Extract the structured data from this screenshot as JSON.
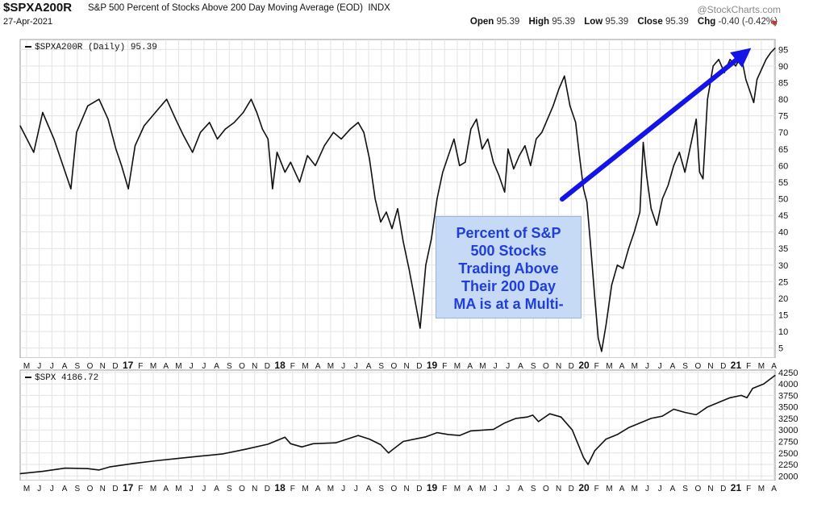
{
  "header": {
    "symbol": "$SPXA200R",
    "description": "S&P 500 Percent of Stocks Above 200 Day Moving Average (EOD)",
    "exchange": "INDX",
    "date": "27-Apr-2021",
    "brand": "@StockCharts.com",
    "ohlc": {
      "open_label": "Open",
      "open": "95.39",
      "high_label": "High",
      "high": "95.39",
      "low_label": "Low",
      "low": "95.39",
      "close_label": "Close",
      "close": "95.39",
      "chg_label": "Chg",
      "chg": "-0.40 (-0.42%)"
    }
  },
  "annotation": {
    "text": "Percent of S&P\n500 Stocks\nTrading Above\nTheir 200 Day\nMA is at a Multi-"
  },
  "colors": {
    "line": "#111111",
    "grid": "#e3e3e3",
    "arrow": "#1414e6",
    "note_bg": "#c6d9f5",
    "note_text": "#1f3fd8",
    "down": "#c0392b"
  },
  "chart_data": [
    {
      "type": "line",
      "legend": "$SPXA200R (Daily) 95.39",
      "ylim": [
        2,
        98
      ],
      "yticks": [
        5,
        10,
        15,
        20,
        25,
        30,
        35,
        40,
        45,
        50,
        55,
        60,
        65,
        70,
        75,
        80,
        85,
        90,
        95
      ],
      "x_ticks": [
        "M",
        "J",
        "J",
        "A",
        "S",
        "O",
        "N",
        "D",
        "17",
        "F",
        "M",
        "A",
        "M",
        "J",
        "J",
        "A",
        "S",
        "O",
        "N",
        "D",
        "18",
        "F",
        "M",
        "A",
        "M",
        "J",
        "J",
        "A",
        "S",
        "O",
        "N",
        "D",
        "19",
        "F",
        "M",
        "A",
        "M",
        "J",
        "J",
        "A",
        "S",
        "O",
        "N",
        "D",
        "20",
        "F",
        "M",
        "A",
        "M",
        "J",
        "J",
        "A",
        "S",
        "O",
        "N",
        "D",
        "21",
        "F",
        "M",
        "A"
      ],
      "x_tick_bold": [
        "17",
        "18",
        "19",
        "20",
        "21"
      ],
      "series": [
        {
          "values": [
            [
              0,
              72
            ],
            [
              1.2,
              64
            ],
            [
              2,
              76
            ],
            [
              3,
              68
            ],
            [
              4,
              58
            ],
            [
              4.5,
              53
            ],
            [
              5,
              70
            ],
            [
              6,
              78
            ],
            [
              7,
              80
            ],
            [
              7.8,
              74
            ],
            [
              8.5,
              65
            ],
            [
              9,
              60
            ],
            [
              9.6,
              53
            ],
            [
              10.2,
              66
            ],
            [
              11,
              72
            ],
            [
              12,
              76
            ],
            [
              13,
              80
            ],
            [
              13.8,
              74
            ],
            [
              14.5,
              69
            ],
            [
              15.3,
              64
            ],
            [
              16,
              70
            ],
            [
              16.8,
              73
            ],
            [
              17.5,
              68
            ],
            [
              18.2,
              71
            ],
            [
              19,
              73
            ],
            [
              19.8,
              76
            ],
            [
              20.5,
              80
            ],
            [
              21,
              76
            ],
            [
              21.5,
              71
            ],
            [
              22,
              68
            ],
            [
              22.4,
              53
            ],
            [
              22.8,
              64
            ],
            [
              23.5,
              58
            ],
            [
              24,
              61
            ],
            [
              24.8,
              55
            ],
            [
              25.5,
              63
            ],
            [
              26.2,
              60
            ],
            [
              27,
              66
            ],
            [
              27.8,
              70
            ],
            [
              28.5,
              68
            ],
            [
              29.3,
              71
            ],
            [
              30,
              73
            ],
            [
              30.5,
              70
            ],
            [
              31,
              62
            ],
            [
              31.5,
              50
            ],
            [
              32,
              43
            ],
            [
              32.5,
              46
            ],
            [
              33,
              41
            ],
            [
              33.5,
              47
            ],
            [
              34,
              37
            ],
            [
              34.5,
              29
            ],
            [
              35,
              20
            ],
            [
              35.5,
              11
            ],
            [
              36,
              30
            ],
            [
              36.5,
              38
            ],
            [
              37,
              50
            ],
            [
              37.5,
              58
            ],
            [
              38,
              63
            ],
            [
              38.5,
              68
            ],
            [
              39,
              60
            ],
            [
              39.5,
              61
            ],
            [
              40,
              71
            ],
            [
              40.5,
              74
            ],
            [
              41,
              65
            ],
            [
              41.5,
              68
            ],
            [
              42,
              61
            ],
            [
              42.5,
              57
            ],
            [
              43,
              52
            ],
            [
              43.3,
              65
            ],
            [
              43.8,
              59
            ],
            [
              44.3,
              63
            ],
            [
              44.8,
              66
            ],
            [
              45.3,
              60
            ],
            [
              45.8,
              68
            ],
            [
              46.3,
              70
            ],
            [
              46.8,
              74
            ],
            [
              47.3,
              78
            ],
            [
              47.8,
              83
            ],
            [
              48.3,
              87
            ],
            [
              48.8,
              78
            ],
            [
              49.3,
              73
            ],
            [
              49.6,
              64
            ],
            [
              50,
              53
            ],
            [
              50.3,
              49
            ],
            [
              50.6,
              37
            ],
            [
              51,
              20
            ],
            [
              51.3,
              8
            ],
            [
              51.6,
              4
            ],
            [
              52,
              12
            ],
            [
              52.5,
              24
            ],
            [
              53,
              30
            ],
            [
              53.5,
              29
            ],
            [
              54,
              35
            ],
            [
              54.5,
              40
            ],
            [
              55,
              46
            ],
            [
              55.3,
              67
            ],
            [
              55.6,
              57
            ],
            [
              56,
              47
            ],
            [
              56.5,
              42
            ],
            [
              57,
              50
            ],
            [
              57.5,
              54
            ],
            [
              58,
              60
            ],
            [
              58.5,
              64
            ],
            [
              59,
              58
            ],
            [
              59.5,
              66
            ],
            [
              60,
              74
            ],
            [
              60.3,
              58
            ],
            [
              60.6,
              56
            ],
            [
              61,
              80
            ],
            [
              61.5,
              90
            ],
            [
              62,
              92
            ],
            [
              62.5,
              88
            ],
            [
              63,
              92
            ],
            [
              63.5,
              90
            ],
            [
              64,
              93
            ],
            [
              64.4,
              86
            ],
            [
              64.8,
              82
            ],
            [
              65.1,
              79
            ],
            [
              65.4,
              86
            ],
            [
              65.8,
              89
            ],
            [
              66.2,
              92
            ],
            [
              66.6,
              94
            ],
            [
              67,
              95.39
            ]
          ]
        }
      ]
    },
    {
      "type": "line",
      "legend": "$SPX 4186.72",
      "ylim": [
        1900,
        4300
      ],
      "yticks": [
        2000,
        2250,
        2500,
        2750,
        3000,
        3250,
        3500,
        3750,
        4000,
        4250
      ],
      "x_ticks": [
        "M",
        "J",
        "J",
        "A",
        "S",
        "O",
        "N",
        "D",
        "17",
        "F",
        "M",
        "A",
        "M",
        "J",
        "J",
        "A",
        "S",
        "O",
        "N",
        "D",
        "18",
        "F",
        "M",
        "A",
        "M",
        "J",
        "J",
        "A",
        "S",
        "O",
        "N",
        "D",
        "19",
        "F",
        "M",
        "A",
        "M",
        "J",
        "J",
        "A",
        "S",
        "O",
        "N",
        "D",
        "20",
        "F",
        "M",
        "A",
        "M",
        "J",
        "J",
        "A",
        "S",
        "O",
        "N",
        "D",
        "21",
        "F",
        "M",
        "A"
      ],
      "x_tick_bold": [
        "17",
        "18",
        "19",
        "20",
        "21"
      ],
      "series": [
        {
          "values": [
            [
              0,
              2050
            ],
            [
              2,
              2100
            ],
            [
              4,
              2170
            ],
            [
              6,
              2160
            ],
            [
              7,
              2130
            ],
            [
              8,
              2200
            ],
            [
              10,
              2270
            ],
            [
              12,
              2330
            ],
            [
              14,
              2380
            ],
            [
              16,
              2430
            ],
            [
              18,
              2480
            ],
            [
              20,
              2580
            ],
            [
              22,
              2690
            ],
            [
              23.5,
              2840
            ],
            [
              24,
              2700
            ],
            [
              25,
              2630
            ],
            [
              26,
              2700
            ],
            [
              28,
              2720
            ],
            [
              30,
              2880
            ],
            [
              31,
              2800
            ],
            [
              32,
              2680
            ],
            [
              32.7,
              2500
            ],
            [
              33,
              2560
            ],
            [
              34,
              2750
            ],
            [
              36,
              2850
            ],
            [
              37,
              2940
            ],
            [
              38,
              2900
            ],
            [
              39,
              2880
            ],
            [
              40,
              2980
            ],
            [
              42,
              3010
            ],
            [
              43,
              3150
            ],
            [
              44,
              3250
            ],
            [
              45,
              3280
            ],
            [
              45.5,
              3320
            ],
            [
              46,
              3180
            ],
            [
              47,
              3350
            ],
            [
              48,
              3280
            ],
            [
              49,
              3000
            ],
            [
              49.5,
              2700
            ],
            [
              50,
              2400
            ],
            [
              50.4,
              2250
            ],
            [
              51,
              2550
            ],
            [
              52,
              2800
            ],
            [
              53,
              2900
            ],
            [
              54,
              3050
            ],
            [
              55,
              3150
            ],
            [
              56,
              3250
            ],
            [
              57,
              3300
            ],
            [
              58,
              3450
            ],
            [
              59,
              3380
            ],
            [
              60,
              3330
            ],
            [
              61,
              3500
            ],
            [
              62,
              3600
            ],
            [
              63,
              3700
            ],
            [
              64,
              3750
            ],
            [
              64.5,
              3700
            ],
            [
              65,
              3900
            ],
            [
              66,
              4000
            ],
            [
              67,
              4186.72
            ]
          ]
        }
      ]
    }
  ]
}
